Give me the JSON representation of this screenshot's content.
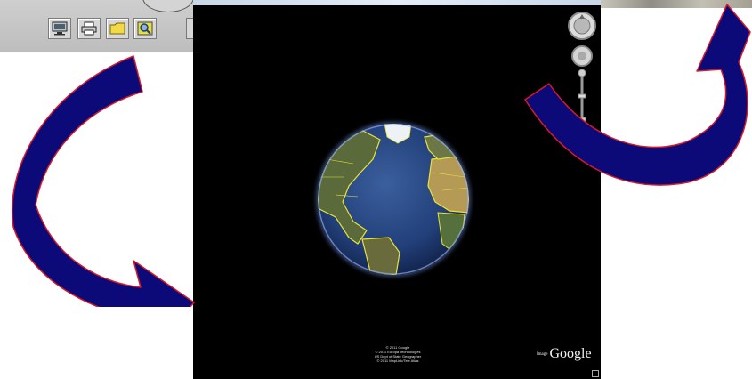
{
  "toolbar": {
    "buttons": [
      {
        "icon": "monitor-icon"
      },
      {
        "icon": "printer-icon"
      },
      {
        "icon": "folder-icon"
      },
      {
        "icon": "magnify-icon"
      }
    ]
  },
  "map": {
    "copyright_lines": [
      "© 2011 Google",
      "© 2011 Europa Technologies",
      "US Dept of State Geographer",
      "© 2011 MapLink/Tele Atlas"
    ],
    "brand": "Google",
    "brand_prefix": "Image"
  },
  "colors": {
    "arrow_fill": "#0b0a78",
    "arrow_outline": "#d61a2a",
    "ocean": "#24437f",
    "land": "#5f6e3a",
    "borders": "#e8e23a",
    "sky": "#000000"
  }
}
